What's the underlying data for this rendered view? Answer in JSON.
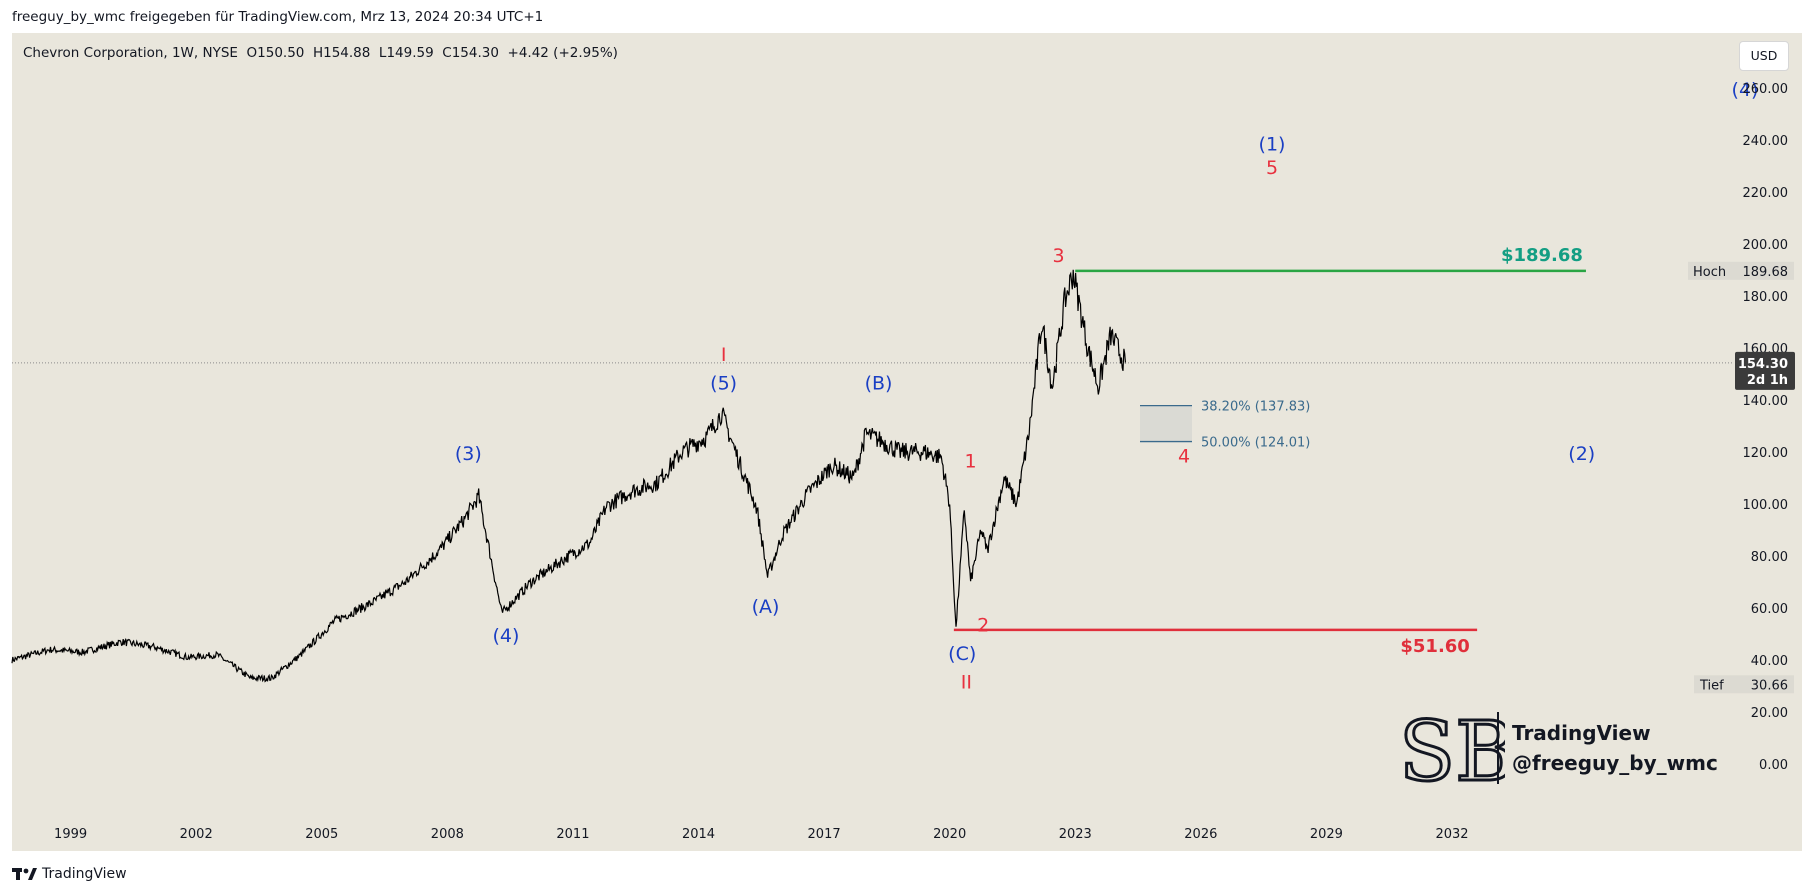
{
  "header_text": "freeguy_by_wmc freigegeben für TradingView.com, Mrz 13, 2024 20:34 UTC+1",
  "symbol_line": "Chevron Corporation, 1W, NYSE  O150.50  H154.88  L149.59  C154.30  +4.42 (+2.95%)",
  "currency_button": "USD",
  "footer_brand": "TradingView",
  "watermark": {
    "line1": "TradingView",
    "line2": "@freeguy_by_wmc",
    "monogram": "SB"
  },
  "colors": {
    "background": "#e9e6dc",
    "price": "#000000",
    "wave_blue": "#1a3fc4",
    "wave_red": "#e8313f",
    "support_red": "#e02f3b",
    "resistance_green": "#2aa544",
    "fib": "#3a6a8c"
  },
  "chart_data": {
    "type": "line",
    "title": "Chevron Corporation, 1W, NYSE",
    "x_ticks": [
      "1999",
      "2002",
      "2005",
      "2008",
      "2011",
      "2014",
      "2017",
      "2020",
      "2023",
      "2026",
      "2029",
      "2032"
    ],
    "y_ticks": [
      "260.00",
      "240.00",
      "220.00",
      "200.00",
      "180.00",
      "160.00",
      "140.00",
      "120.00",
      "100.00",
      "80.00",
      "60.00",
      "40.00",
      "20.00",
      "0.00"
    ],
    "ylim": [
      0,
      270
    ],
    "xlim": [
      1997.6,
      2040.6
    ],
    "series": [
      {
        "x": [
          1997.6,
          1998.5,
          1999.3,
          2000.2,
          2001.0,
          2001.8,
          2002.5,
          2003.3,
          2003.8,
          2004.5,
          2005.3,
          2006.2,
          2007.0,
          2007.8,
          2008.4,
          2008.75,
          2009.3,
          2010.0,
          2010.8,
          2011.4,
          2011.8,
          2012.4,
          2013.0,
          2013.6,
          2014.2,
          2014.55,
          2015.0,
          2015.4,
          2015.65,
          2016.0,
          2016.6,
          2017.2,
          2017.7,
          2018.0,
          2018.4,
          2018.8,
          2019.4,
          2019.8,
          2020.0,
          2020.15,
          2020.35,
          2020.5,
          2020.75,
          2020.9,
          2021.3,
          2021.6,
          2021.9,
          2022.2,
          2022.45,
          2022.75,
          2022.95,
          2023.3,
          2023.55,
          2023.85,
          2024.2
        ],
        "y": [
          40,
          44,
          43,
          47,
          45,
          41,
          42,
          33,
          33,
          42,
          55,
          62,
          70,
          82,
          94,
          103,
          58,
          70,
          79,
          85,
          99,
          105,
          108,
          120,
          126,
          135,
          115,
          98,
          72,
          88,
          104,
          115,
          110,
          127,
          124,
          120,
          120,
          118,
          100,
          52,
          98,
          70,
          90,
          82,
          110,
          100,
          128,
          170,
          145,
          178,
          189,
          160,
          145,
          165,
          154
        ]
      }
    ],
    "current_price": {
      "label": "154.30",
      "countdown": "2d 1h",
      "value": 154.3
    },
    "high_marker": {
      "label": "Hoch",
      "value": "189.68"
    },
    "low_marker": {
      "label": "Tief",
      "value": "30.66"
    },
    "resistance": {
      "label": "$189.68",
      "value": 189.68,
      "x_start": 2023.0,
      "x_end": 2035.2
    },
    "support": {
      "label": "$51.60",
      "value": 51.6,
      "x_start": 2020.1,
      "x_end": 2032.6
    },
    "fibonacci": [
      {
        "label": "38.20% (137.83)",
        "value": 137.83
      },
      {
        "label": "50.00% (124.01)",
        "value": 124.01
      }
    ],
    "wave_labels": [
      {
        "text": "(3)",
        "x": 2008.5,
        "y": 117,
        "color": "blue"
      },
      {
        "text": "(4)",
        "x": 2009.4,
        "y": 47,
        "color": "blue"
      },
      {
        "text": "I",
        "x": 2014.6,
        "y": 155,
        "color": "red"
      },
      {
        "text": "(5)",
        "x": 2014.6,
        "y": 144,
        "color": "blue"
      },
      {
        "text": "(B)",
        "x": 2018.3,
        "y": 144,
        "color": "blue"
      },
      {
        "text": "(A)",
        "x": 2015.6,
        "y": 58,
        "color": "blue"
      },
      {
        "text": "1",
        "x": 2020.5,
        "y": 114,
        "color": "red"
      },
      {
        "text": "2",
        "x": 2020.8,
        "y": 51,
        "color": "red"
      },
      {
        "text": "(C)",
        "x": 2020.3,
        "y": 40,
        "color": "blue"
      },
      {
        "text": "II",
        "x": 2020.4,
        "y": 29,
        "color": "red"
      },
      {
        "text": "3",
        "x": 2022.6,
        "y": 193,
        "color": "red"
      },
      {
        "text": "4",
        "x": 2025.6,
        "y": 116,
        "color": "red"
      },
      {
        "text": "(1)",
        "x": 2027.7,
        "y": 236,
        "color": "blue"
      },
      {
        "text": "5",
        "x": 2027.7,
        "y": 227,
        "color": "red"
      },
      {
        "text": "(2)",
        "x": 2035.1,
        "y": 117,
        "color": "blue"
      },
      {
        "text": "(4)",
        "x": 2039.0,
        "y": 257,
        "color": "blue"
      }
    ]
  }
}
